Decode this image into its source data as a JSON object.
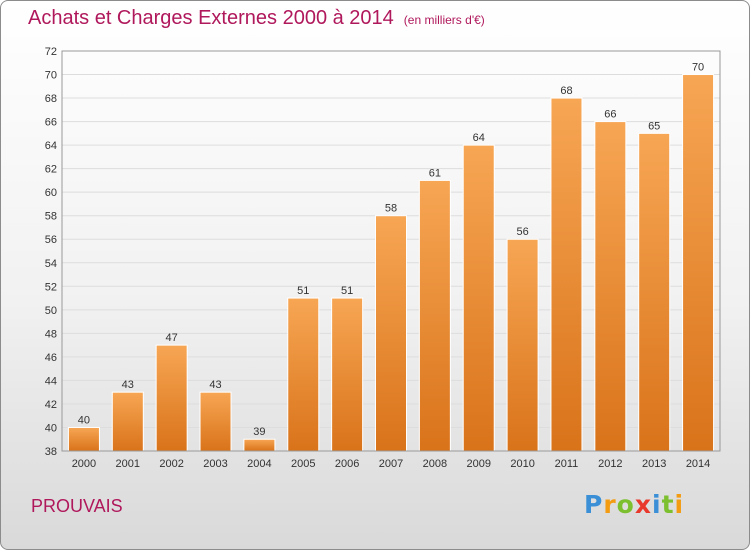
{
  "title": "Achats et Charges Externes 2000 à 2014",
  "subtitle": "(en milliers d'€)",
  "commune": "PROUVAIS",
  "logo": {
    "letters": [
      "P",
      "r",
      "o",
      "x",
      "i",
      "t",
      "i"
    ],
    "colors": [
      "#3a8fd6",
      "#f39c12",
      "#7cbf2f",
      "#e8392c",
      "#3a8fd6",
      "#7cbf2f",
      "#f39c12"
    ]
  },
  "colors": {
    "bar_light": "#f7a654",
    "bar_dark": "#d9731a",
    "title": "#b0185c"
  },
  "chart_data": {
    "type": "bar",
    "title": "Achats et Charges Externes 2000 à 2014",
    "subtitle": "(en milliers d'€)",
    "categories": [
      "2000",
      "2001",
      "2002",
      "2003",
      "2004",
      "2005",
      "2006",
      "2007",
      "2008",
      "2009",
      "2010",
      "2011",
      "2012",
      "2013",
      "2014"
    ],
    "values": [
      40,
      43,
      47,
      43,
      39,
      51,
      51,
      58,
      61,
      64,
      56,
      68,
      66,
      65,
      70
    ],
    "ylim": [
      38,
      72
    ],
    "yticks": [
      38,
      40,
      42,
      44,
      46,
      48,
      50,
      52,
      54,
      56,
      58,
      60,
      62,
      64,
      66,
      68,
      70,
      72
    ],
    "grid": true,
    "xlabel": "",
    "ylabel": ""
  }
}
